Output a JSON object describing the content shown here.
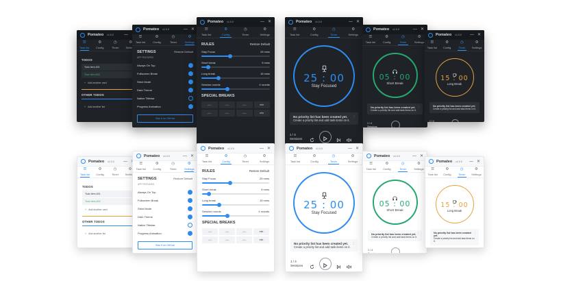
{
  "app": {
    "name": "Pomateo",
    "version": "v1.0.0"
  },
  "icons": {
    "logo": "tomato-logo-icon",
    "minimize": "minimize-icon",
    "close": "close-icon",
    "add": "plus-icon",
    "reset": "reset-icon",
    "play": "play-icon",
    "skip": "skip-icon",
    "volume": "volume-icon",
    "more": "more-vertical-icon",
    "focus": "chair-icon",
    "short_break": "headphones-icon",
    "long_break": "coffee-icon"
  },
  "colors": {
    "accent": "#2f8cf0",
    "focus": "#2f8cf0",
    "short_break": "#27a870",
    "long_break": "#e6a23c",
    "done": "#3fb866",
    "dark_bg": "#1f2327",
    "light_bg": "#ffffff"
  },
  "tabs": [
    "Task list",
    "Config",
    "Timer",
    "Settings"
  ],
  "controls": {
    "minimize": "—",
    "close": "✕"
  },
  "tasks": {
    "todos_title": "TODOS",
    "items": [
      "Todo item #01",
      "Todo item #02"
    ],
    "add_card": "Add another card",
    "other_title": "OTHER TODOS",
    "add_list": "Add another list"
  },
  "settings": {
    "title": "SETTINGS",
    "restore": "Restore Default",
    "subtitle": "APP FEATURES",
    "options": [
      "Always On Top",
      "Fullscreen Break",
      "Strict Mode",
      "Dark Theme",
      "Native Titlebar",
      "Progress Animation"
    ],
    "star_button": "Star it on GitHub"
  },
  "config": {
    "title": "RULES",
    "restore": "Restore Default",
    "rules": [
      {
        "label": "Stay Focus",
        "value": "25 mins",
        "level": 0.42
      },
      {
        "label": "Short break",
        "value": "5 mins",
        "level": 0.1
      },
      {
        "label": "Long break",
        "value": "15 mins",
        "level": 0.25
      },
      {
        "label": "Session rounds",
        "value": "4 rounds",
        "level": 0.38
      }
    ],
    "special_title": "SPECIAL BREAKS",
    "break_cells": [
      "--:--",
      "--:--",
      "--:--",
      "min",
      "--:--",
      "--:--",
      "--:--",
      "min"
    ]
  },
  "timer": {
    "focus": {
      "time": "25 : 00",
      "label": "Stay Focused"
    },
    "short": {
      "time": "05 : 00",
      "label": "Short Break"
    },
    "long": {
      "time": "15 : 00",
      "label": "Long Break"
    },
    "note_title": "No priority list has been created yet.",
    "note_text": "Create a priority list and add task items on it.",
    "rounds": "1 / 4",
    "sessions": "Sessions"
  }
}
